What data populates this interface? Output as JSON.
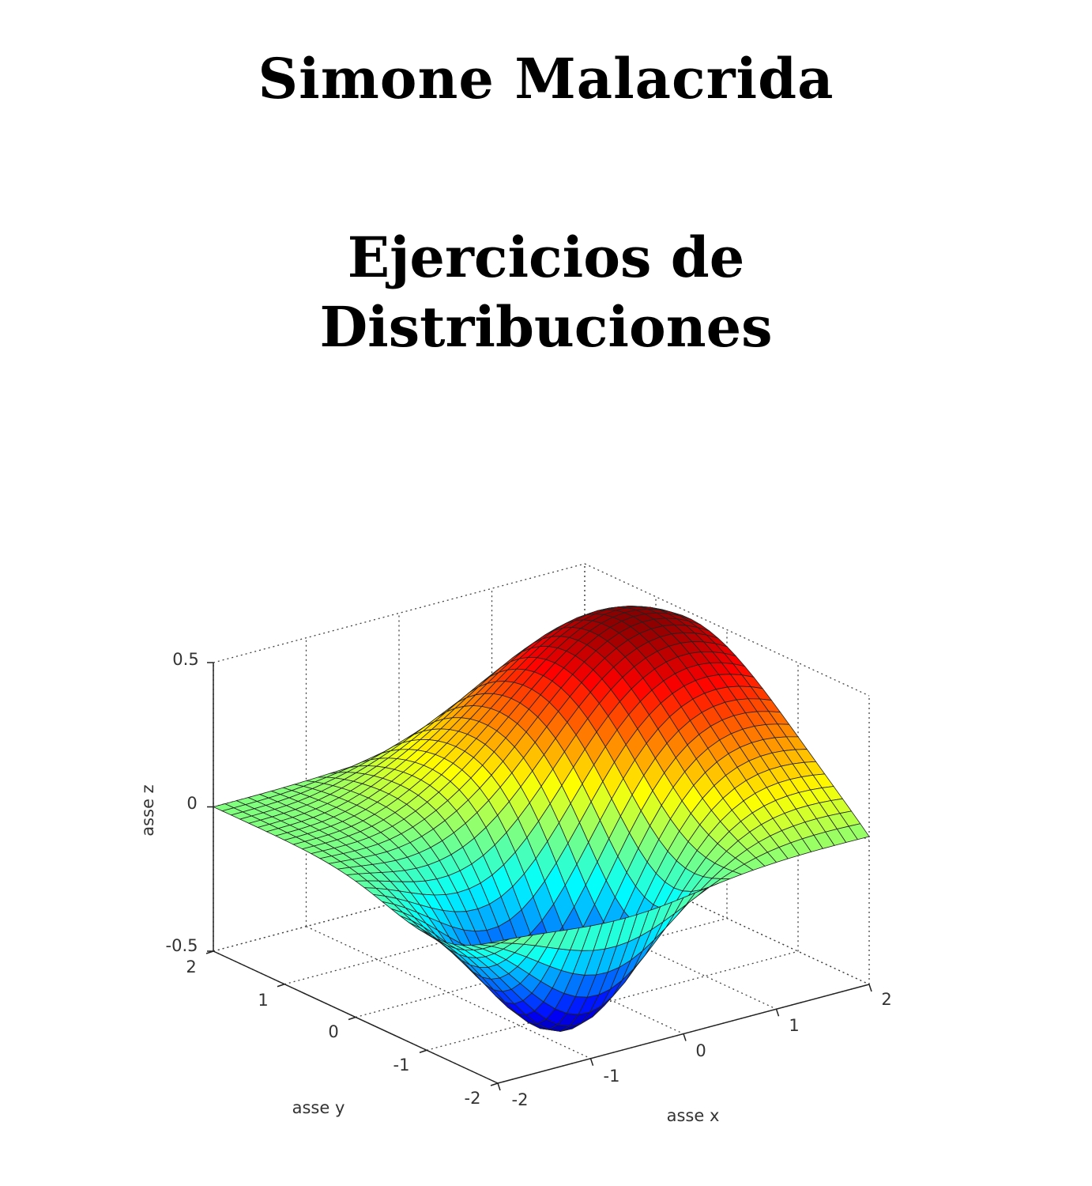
{
  "cover": {
    "author": "Simone Malacrida",
    "title_lines": [
      "Ejercicios de",
      "Distribuciones"
    ]
  },
  "plot": {
    "z_label": "asse z",
    "y_label": "asse y",
    "x_label": "asse x",
    "z_ticks": [
      "0.5",
      "0",
      "-0.5"
    ],
    "y_ticks": [
      "2",
      "1",
      "0",
      "-1",
      "-2"
    ],
    "x_ticks": [
      "-2",
      "-1",
      "0",
      "1",
      "2"
    ]
  }
}
